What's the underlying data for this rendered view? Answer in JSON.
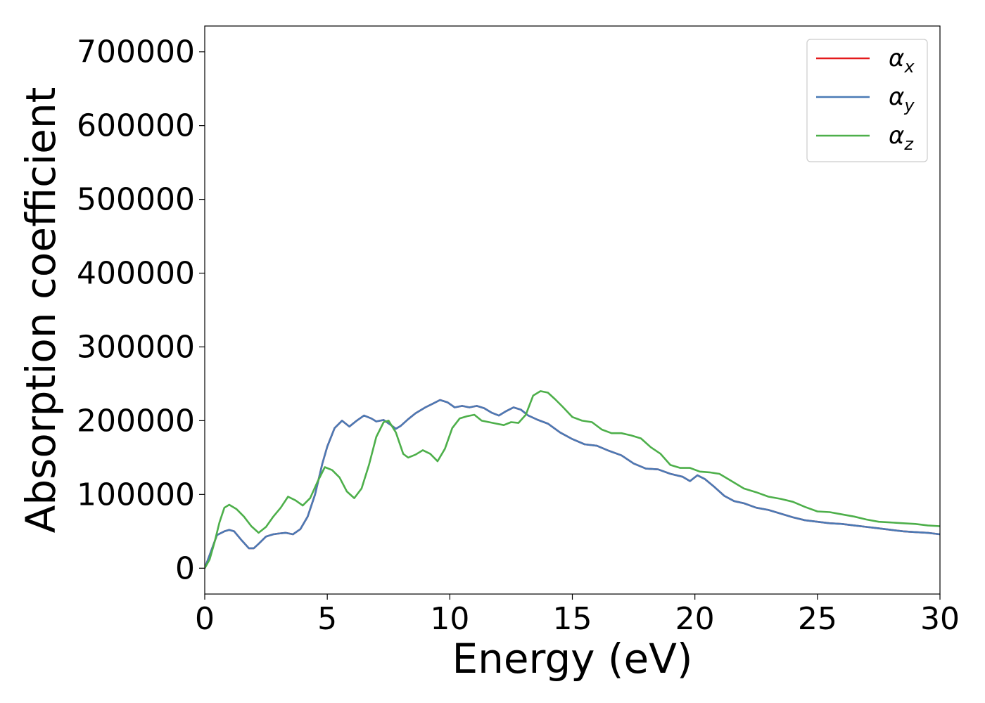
{
  "chart_data": {
    "type": "line",
    "title": "",
    "xlabel": "Energy (eV)",
    "ylabel": "Absorption coefficient",
    "xlim": [
      0,
      30
    ],
    "ylim": [
      -35000,
      735000
    ],
    "xticks": [
      0,
      5,
      10,
      15,
      20,
      25,
      30
    ],
    "yticks": [
      0,
      100000,
      200000,
      300000,
      400000,
      500000,
      600000,
      700000
    ],
    "grid": false,
    "legend_position": "top-right",
    "series": [
      {
        "name": "αx",
        "symbol": "α",
        "subscript": "x",
        "color": "#e41a1c",
        "x": [
          0,
          0.2,
          0.5,
          0.8,
          1.0,
          1.2,
          1.5,
          1.8,
          2.0,
          2.2,
          2.5,
          2.8,
          3.0,
          3.3,
          3.6,
          3.9,
          4.2,
          4.5,
          4.8,
          5.0,
          5.3,
          5.6,
          5.9,
          6.2,
          6.5,
          6.8,
          7.0,
          7.3,
          7.6,
          7.8,
          8.0,
          8.3,
          8.6,
          9.0,
          9.3,
          9.6,
          9.9,
          10.2,
          10.5,
          10.8,
          11.1,
          11.4,
          11.7,
          12.0,
          12.3,
          12.6,
          12.9,
          13.2,
          13.6,
          14.0,
          14.5,
          15.0,
          15.5,
          16.0,
          16.5,
          17.0,
          17.5,
          18.0,
          18.5,
          19.0,
          19.5,
          19.8,
          20.1,
          20.4,
          20.8,
          21.2,
          21.6,
          22.0,
          22.5,
          23.0,
          23.5,
          24.0,
          24.5,
          25.0,
          25.5,
          26.0,
          26.5,
          27.0,
          27.5,
          28.0,
          28.5,
          29.0,
          29.5,
          30.0
        ],
        "y": [
          0,
          18000,
          45000,
          50000,
          52000,
          50000,
          38000,
          27000,
          27000,
          33000,
          43000,
          46000,
          47000,
          48000,
          46000,
          53000,
          70000,
          100000,
          142000,
          165000,
          190000,
          200000,
          192000,
          200000,
          207000,
          203000,
          199000,
          201000,
          194000,
          189000,
          193000,
          202000,
          210000,
          218000,
          223000,
          228000,
          225000,
          218000,
          220000,
          218000,
          220000,
          217000,
          211000,
          207000,
          213000,
          218000,
          215000,
          207000,
          201000,
          196000,
          184000,
          175000,
          168000,
          166000,
          159000,
          153000,
          142000,
          135000,
          134000,
          128000,
          124000,
          118000,
          126000,
          121000,
          110000,
          98000,
          91000,
          88000,
          82000,
          79000,
          74000,
          69000,
          65000,
          63000,
          61000,
          60000,
          58000,
          56000,
          54000,
          52000,
          50000,
          49000,
          48000,
          46000
        ]
      },
      {
        "name": "αy",
        "symbol": "α",
        "subscript": "y",
        "color": "#4a7ab5",
        "x": [
          0,
          0.2,
          0.5,
          0.8,
          1.0,
          1.2,
          1.5,
          1.8,
          2.0,
          2.2,
          2.5,
          2.8,
          3.0,
          3.3,
          3.6,
          3.9,
          4.2,
          4.5,
          4.8,
          5.0,
          5.3,
          5.6,
          5.9,
          6.2,
          6.5,
          6.8,
          7.0,
          7.3,
          7.6,
          7.8,
          8.0,
          8.3,
          8.6,
          9.0,
          9.3,
          9.6,
          9.9,
          10.2,
          10.5,
          10.8,
          11.1,
          11.4,
          11.7,
          12.0,
          12.3,
          12.6,
          12.9,
          13.2,
          13.6,
          14.0,
          14.5,
          15.0,
          15.5,
          16.0,
          16.5,
          17.0,
          17.5,
          18.0,
          18.5,
          19.0,
          19.5,
          19.8,
          20.1,
          20.4,
          20.8,
          21.2,
          21.6,
          22.0,
          22.5,
          23.0,
          23.5,
          24.0,
          24.5,
          25.0,
          25.5,
          26.0,
          26.5,
          27.0,
          27.5,
          28.0,
          28.5,
          29.0,
          29.5,
          30.0
        ],
        "y": [
          0,
          18000,
          45000,
          50000,
          52000,
          50000,
          38000,
          27000,
          27000,
          33000,
          43000,
          46000,
          47000,
          48000,
          46000,
          53000,
          70000,
          100000,
          142000,
          165000,
          190000,
          200000,
          192000,
          200000,
          207000,
          203000,
          199000,
          201000,
          194000,
          189000,
          193000,
          202000,
          210000,
          218000,
          223000,
          228000,
          225000,
          218000,
          220000,
          218000,
          220000,
          217000,
          211000,
          207000,
          213000,
          218000,
          215000,
          207000,
          201000,
          196000,
          184000,
          175000,
          168000,
          166000,
          159000,
          153000,
          142000,
          135000,
          134000,
          128000,
          124000,
          118000,
          126000,
          121000,
          110000,
          98000,
          91000,
          88000,
          82000,
          79000,
          74000,
          69000,
          65000,
          63000,
          61000,
          60000,
          58000,
          56000,
          54000,
          52000,
          50000,
          49000,
          48000,
          46000
        ]
      },
      {
        "name": "αz",
        "symbol": "α",
        "subscript": "z",
        "color": "#4daf4a",
        "x": [
          0,
          0.2,
          0.4,
          0.6,
          0.8,
          1.0,
          1.3,
          1.6,
          1.9,
          2.2,
          2.5,
          2.8,
          3.1,
          3.4,
          3.7,
          4.0,
          4.3,
          4.6,
          4.9,
          5.2,
          5.5,
          5.8,
          6.1,
          6.4,
          6.7,
          7.0,
          7.3,
          7.5,
          7.8,
          8.1,
          8.3,
          8.6,
          8.9,
          9.2,
          9.5,
          9.8,
          10.1,
          10.4,
          10.7,
          11.0,
          11.3,
          11.6,
          11.9,
          12.2,
          12.5,
          12.8,
          13.1,
          13.4,
          13.7,
          14.0,
          14.3,
          14.6,
          15.0,
          15.4,
          15.8,
          16.2,
          16.6,
          17.0,
          17.4,
          17.8,
          18.2,
          18.6,
          19.0,
          19.4,
          19.8,
          20.2,
          20.6,
          21.0,
          21.5,
          22.0,
          22.5,
          23.0,
          23.5,
          24.0,
          24.5,
          25.0,
          25.5,
          26.0,
          26.5,
          27.0,
          27.5,
          28.0,
          28.5,
          29.0,
          29.5,
          30.0
        ],
        "y": [
          0,
          12000,
          35000,
          62000,
          82000,
          86000,
          80000,
          70000,
          57000,
          48000,
          56000,
          70000,
          82000,
          97000,
          92000,
          85000,
          95000,
          117000,
          137000,
          133000,
          123000,
          104000,
          95000,
          108000,
          140000,
          178000,
          198000,
          200000,
          184000,
          155000,
          150000,
          154000,
          160000,
          155000,
          145000,
          162000,
          190000,
          203000,
          206000,
          208000,
          200000,
          198000,
          196000,
          194000,
          198000,
          197000,
          208000,
          234000,
          240000,
          238000,
          229000,
          219000,
          205000,
          200000,
          198000,
          188000,
          183000,
          183000,
          180000,
          176000,
          164000,
          155000,
          140000,
          136000,
          136000,
          131000,
          130000,
          128000,
          118000,
          108000,
          103000,
          97000,
          94000,
          90000,
          83000,
          77000,
          76000,
          73000,
          70000,
          66000,
          63000,
          62000,
          61000,
          60000,
          58000,
          57000
        ]
      }
    ]
  }
}
